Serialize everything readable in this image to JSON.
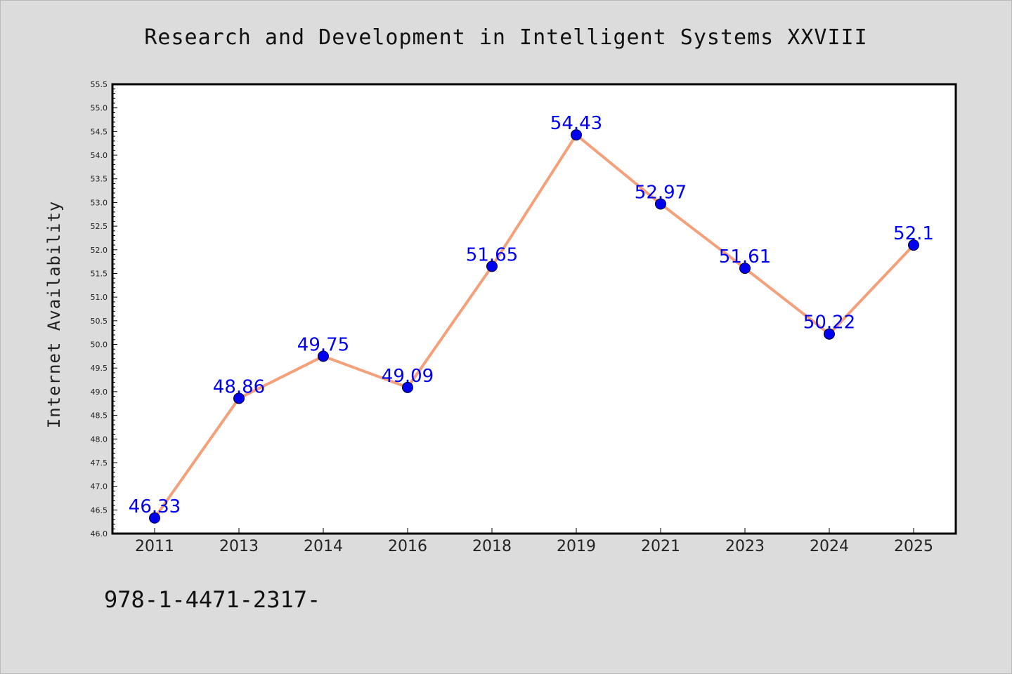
{
  "footer": {
    "isbn_text": "978-1-4471-2317-"
  },
  "chart_data": {
    "type": "line",
    "title": "Research and Development in Intelligent Systems XXVIII",
    "xlabel": "",
    "ylabel": "Internet Availability",
    "categories": [
      "2011",
      "2013",
      "2014",
      "2016",
      "2018",
      "2019",
      "2021",
      "2023",
      "2024",
      "2025"
    ],
    "series": [
      {
        "values": [
          46.33,
          48.86,
          49.75,
          49.09,
          51.65,
          54.43,
          52.97,
          51.61,
          50.22,
          52.1
        ],
        "data_labels": [
          "46.33",
          "48.86",
          "49.75",
          "49.09",
          "51.65",
          "54.43",
          "52.97",
          "51.61",
          "50.22",
          "52.1"
        ],
        "line_color": "#f4a07a",
        "marker_color": "#0000ee"
      }
    ],
    "ylim": [
      46.0,
      55.5
    ],
    "yticks": [
      "46.0",
      "46.5",
      "47.0",
      "47.5",
      "48.0",
      "48.5",
      "49.0",
      "49.5",
      "50.0",
      "50.5",
      "51.0",
      "51.5",
      "52.0",
      "52.5",
      "53.0",
      "53.5",
      "54.0",
      "54.5",
      "55.0",
      "55.5"
    ],
    "grid": false,
    "legend": "none",
    "colors": {
      "plot_background": "#ffffff",
      "page_background": "#dcdcdc",
      "label_color": "#0000ee"
    }
  }
}
